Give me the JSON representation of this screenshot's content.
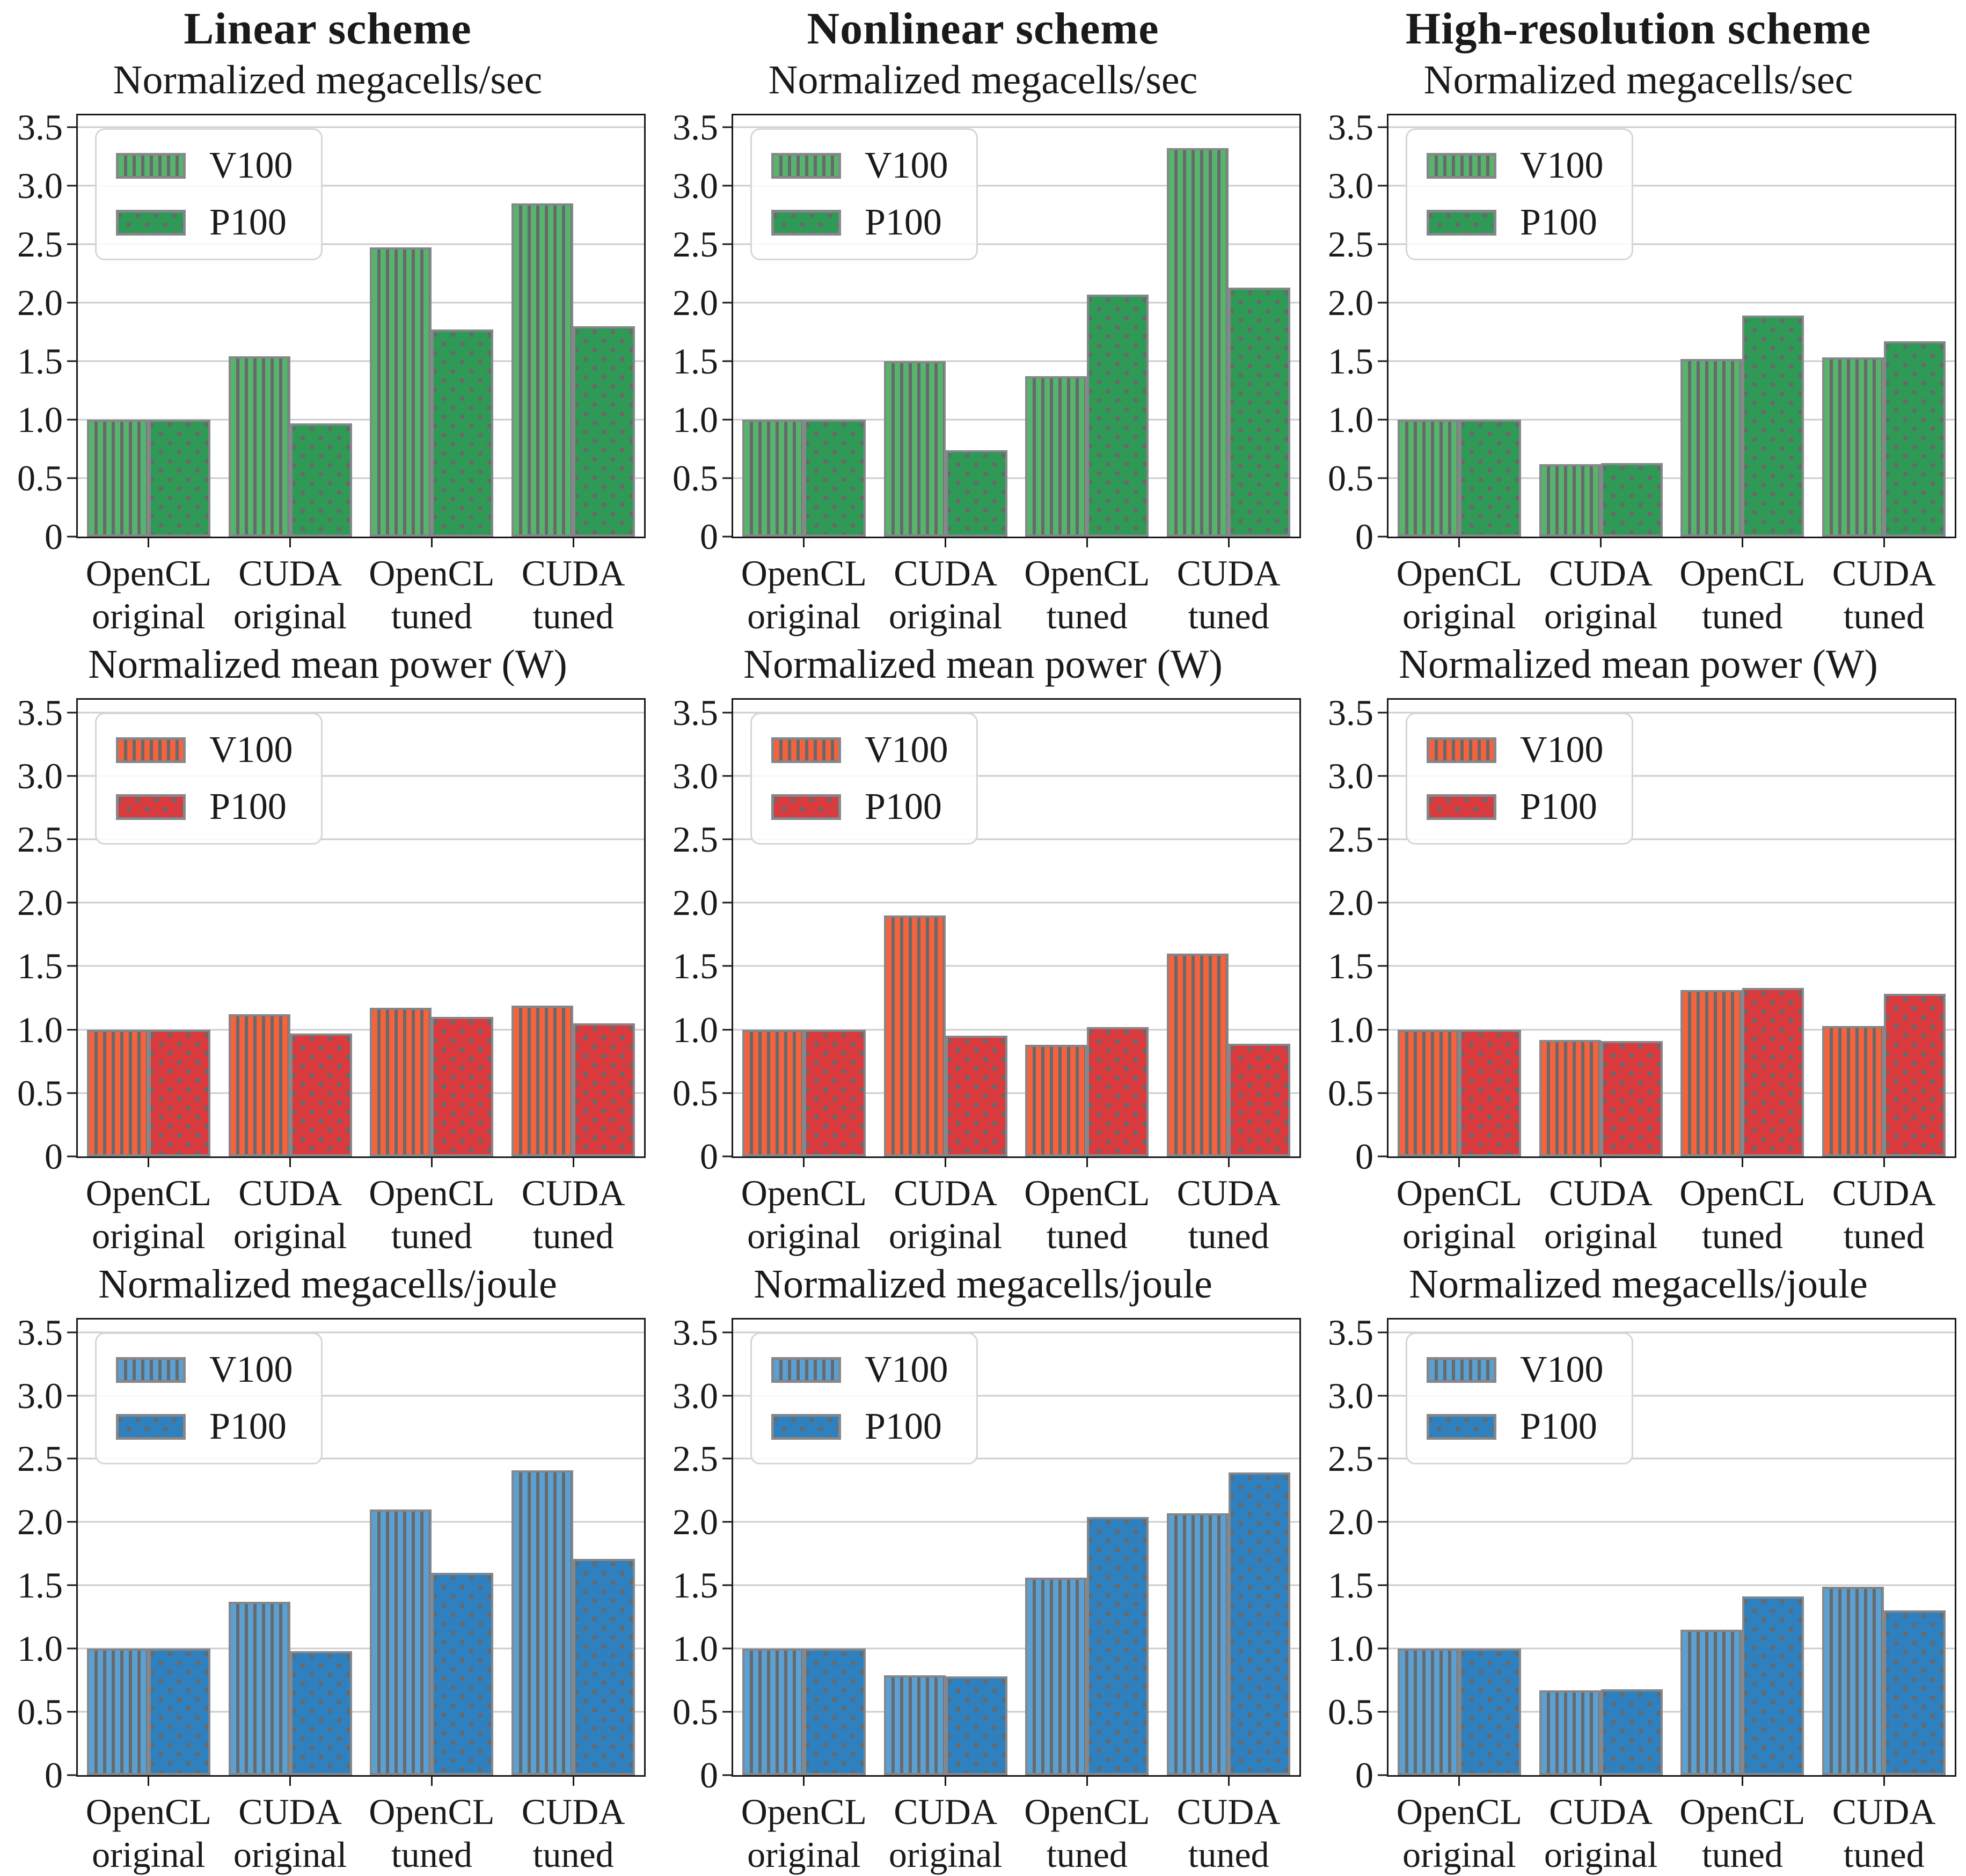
{
  "figure": {
    "legend": {
      "v100_label": "V100",
      "p100_label": "P100"
    },
    "y_ticks": [
      0,
      0.5,
      1.0,
      1.5,
      2.0,
      2.5,
      3.0,
      3.5
    ],
    "y_tick_labels": [
      "0",
      "0.5",
      "1.0",
      "1.5",
      "2.0",
      "2.5",
      "3.0",
      "3.5"
    ],
    "ylim": [
      0,
      3.6
    ],
    "grid": true,
    "legend_position": "upper-left",
    "colors": {
      "green_v100": "#57B46D",
      "green_p100": "#2F9A55",
      "red_v100": "#F4623E",
      "red_p100": "#D93B3F",
      "blue_v100": "#5AA0D3",
      "blue_p100": "#2E80BF",
      "hatch": "#67696B",
      "bar_edge": "#85878A",
      "gridline": "#CDCDCD",
      "spine": "#1A1A1A"
    }
  },
  "chart_data": [
    {
      "type": "bar",
      "scheme_title": "Linear scheme",
      "title": "Normalized megacells/sec",
      "palette": "green",
      "categories": [
        "OpenCL original",
        "CUDA original",
        "OpenCL tuned",
        "CUDA tuned"
      ],
      "series": [
        {
          "name": "V100",
          "values": [
            1.0,
            1.54,
            2.47,
            2.85
          ]
        },
        {
          "name": "P100",
          "values": [
            1.0,
            0.97,
            1.77,
            1.8
          ]
        }
      ],
      "ylim": [
        0,
        3.6
      ]
    },
    {
      "type": "bar",
      "scheme_title": "Nonlinear scheme",
      "title": "Normalized megacells/sec",
      "palette": "green",
      "categories": [
        "OpenCL original",
        "CUDA original",
        "OpenCL tuned",
        "CUDA tuned"
      ],
      "series": [
        {
          "name": "V100",
          "values": [
            1.0,
            1.5,
            1.37,
            3.32
          ]
        },
        {
          "name": "P100",
          "values": [
            1.0,
            0.74,
            2.07,
            2.13
          ]
        }
      ],
      "ylim": [
        0,
        3.6
      ]
    },
    {
      "type": "bar",
      "scheme_title": "High-resolution scheme",
      "title": "Normalized megacells/sec",
      "palette": "green",
      "categories": [
        "OpenCL original",
        "CUDA original",
        "OpenCL tuned",
        "CUDA tuned"
      ],
      "series": [
        {
          "name": "V100",
          "values": [
            1.0,
            0.62,
            1.52,
            1.53
          ]
        },
        {
          "name": "P100",
          "values": [
            1.0,
            0.63,
            1.89,
            1.67
          ]
        }
      ],
      "ylim": [
        0,
        3.6
      ]
    },
    {
      "type": "bar",
      "scheme_title": "",
      "title": "Normalized mean power (W)",
      "palette": "red",
      "categories": [
        "OpenCL original",
        "CUDA original",
        "OpenCL tuned",
        "CUDA tuned"
      ],
      "series": [
        {
          "name": "V100",
          "values": [
            1.0,
            1.12,
            1.17,
            1.19
          ]
        },
        {
          "name": "P100",
          "values": [
            1.0,
            0.97,
            1.1,
            1.05
          ]
        }
      ],
      "ylim": [
        0,
        3.6
      ]
    },
    {
      "type": "bar",
      "scheme_title": "",
      "title": "Normalized mean power (W)",
      "palette": "red",
      "categories": [
        "OpenCL original",
        "CUDA original",
        "OpenCL tuned",
        "CUDA tuned"
      ],
      "series": [
        {
          "name": "V100",
          "values": [
            1.0,
            1.9,
            0.88,
            1.6
          ]
        },
        {
          "name": "P100",
          "values": [
            1.0,
            0.95,
            1.02,
            0.89
          ]
        }
      ],
      "ylim": [
        0,
        3.6
      ]
    },
    {
      "type": "bar",
      "scheme_title": "",
      "title": "Normalized mean power (W)",
      "palette": "red",
      "categories": [
        "OpenCL original",
        "CUDA original",
        "OpenCL tuned",
        "CUDA tuned"
      ],
      "series": [
        {
          "name": "V100",
          "values": [
            1.0,
            0.92,
            1.31,
            1.03
          ]
        },
        {
          "name": "P100",
          "values": [
            1.0,
            0.91,
            1.33,
            1.28
          ]
        }
      ],
      "ylim": [
        0,
        3.6
      ]
    },
    {
      "type": "bar",
      "scheme_title": "",
      "title": "Normalized megacells/joule",
      "palette": "blue",
      "categories": [
        "OpenCL original",
        "CUDA original",
        "OpenCL tuned",
        "CUDA tuned"
      ],
      "series": [
        {
          "name": "V100",
          "values": [
            1.0,
            1.37,
            2.1,
            2.41
          ]
        },
        {
          "name": "P100",
          "values": [
            1.0,
            0.98,
            1.6,
            1.71
          ]
        }
      ],
      "ylim": [
        0,
        3.6
      ]
    },
    {
      "type": "bar",
      "scheme_title": "",
      "title": "Normalized megacells/joule",
      "palette": "blue",
      "categories": [
        "OpenCL original",
        "CUDA original",
        "OpenCL tuned",
        "CUDA tuned"
      ],
      "series": [
        {
          "name": "V100",
          "values": [
            1.0,
            0.79,
            1.56,
            2.07
          ]
        },
        {
          "name": "P100",
          "values": [
            1.0,
            0.78,
            2.04,
            2.39
          ]
        }
      ],
      "ylim": [
        0,
        3.6
      ]
    },
    {
      "type": "bar",
      "scheme_title": "",
      "title": "Normalized megacells/joule",
      "palette": "blue",
      "categories": [
        "OpenCL original",
        "CUDA original",
        "OpenCL tuned",
        "CUDA tuned"
      ],
      "series": [
        {
          "name": "V100",
          "values": [
            1.0,
            0.67,
            1.15,
            1.49
          ]
        },
        {
          "name": "P100",
          "values": [
            1.0,
            0.68,
            1.41,
            1.3
          ]
        }
      ],
      "ylim": [
        0,
        3.6
      ]
    }
  ]
}
